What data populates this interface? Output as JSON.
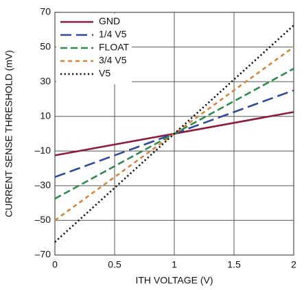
{
  "chart_data": {
    "type": "line",
    "x_label": "ITH VOLTAGE (V)",
    "y_label": "CURRENT SENSE THRESHOLD (mV)",
    "x": [
      0,
      2
    ],
    "series": [
      {
        "name": "GND",
        "color": "#8c1c3c",
        "linestyle": "solid",
        "values": [
          -12.5,
          12.5
        ]
      },
      {
        "name": "1/4 V5",
        "color": "#2f4a98",
        "linestyle": "longdash",
        "values": [
          -25,
          25
        ]
      },
      {
        "name": "FLOAT",
        "color": "#2e8a4e",
        "linestyle": "dash",
        "values": [
          -37.5,
          37.5
        ]
      },
      {
        "name": "3/4 V5",
        "color": "#d5843c",
        "linestyle": "shortdash",
        "values": [
          -50,
          50
        ]
      },
      {
        "name": "V5",
        "color": "#111111",
        "linestyle": "dot",
        "values": [
          -62.5,
          62.5
        ]
      }
    ],
    "xlim": [
      0,
      2
    ],
    "xticks": [
      0,
      0.5,
      1,
      1.5,
      2
    ],
    "ylim": [
      -70,
      70
    ],
    "yticks": [
      {
        "value": -70,
        "label": "–70"
      },
      {
        "value": -50,
        "label": "–50"
      },
      {
        "value": -30,
        "label": "–30"
      },
      {
        "value": -10,
        "label": "–10"
      },
      10,
      30,
      50,
      70
    ],
    "grid": true,
    "legend": "upper-left"
  }
}
